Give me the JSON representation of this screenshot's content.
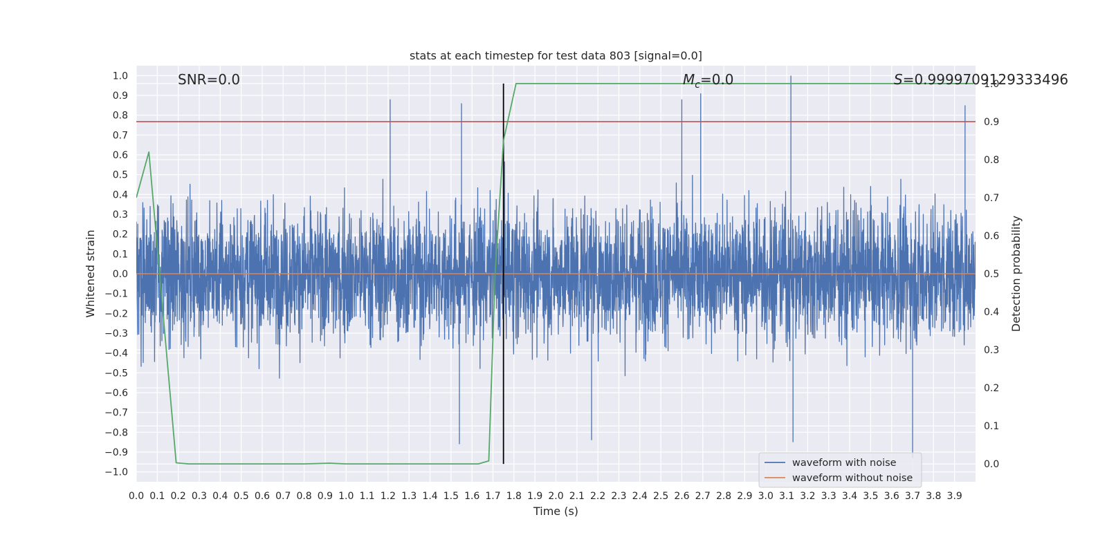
{
  "chart_data": {
    "type": "line",
    "title": "stats at each timestep for test data 803 [signal=0.0]",
    "xlabel": "Time (s)",
    "ylabel": "Whitened strain",
    "y2label": "Detection probability",
    "xlim": [
      0.0,
      4.0
    ],
    "ylim": [
      -1.05,
      1.05
    ],
    "y2lim": [
      -0.047,
      1.047
    ],
    "grid": true,
    "legend_placement": "lower-right",
    "x_ticks": [
      "0.0",
      "0.1",
      "0.2",
      "0.3",
      "0.4",
      "0.5",
      "0.6",
      "0.7",
      "0.8",
      "0.9",
      "1.0",
      "1.1",
      "1.2",
      "1.3",
      "1.4",
      "1.5",
      "1.6",
      "1.7",
      "1.8",
      "1.9",
      "2.0",
      "2.1",
      "2.2",
      "2.3",
      "2.4",
      "2.5",
      "2.6",
      "2.7",
      "2.8",
      "2.9",
      "3.0",
      "3.1",
      "3.2",
      "3.3",
      "3.4",
      "3.5",
      "3.6",
      "3.7",
      "3.8",
      "3.9"
    ],
    "y_ticks": [
      "1.0",
      "0.9",
      "0.8",
      "0.7",
      "0.6",
      "0.5",
      "0.4",
      "0.3",
      "0.2",
      "0.1",
      "0.0",
      "−0.1",
      "−0.2",
      "−0.3",
      "−0.4",
      "−0.5",
      "−0.6",
      "−0.7",
      "−0.8",
      "−0.9",
      "−1.0"
    ],
    "y2_ticks": [
      "0.0",
      "0.1",
      "0.2",
      "0.3",
      "0.4",
      "0.5",
      "0.6",
      "0.7",
      "0.8",
      "0.9",
      "1.0"
    ],
    "annotations": {
      "snr": "SNR=0.0",
      "mc_symbol": "M",
      "mc_sub": "c",
      "mc_value": "=0.0",
      "s_symbol": "S",
      "s_value": "=0.9999709129333496"
    },
    "series": [
      {
        "name": "waveform with noise",
        "color": "#4c72b0",
        "kind": "noise",
        "x_range": [
          0.0,
          4.0
        ],
        "amplitude_range": [
          -0.92,
          1.0
        ],
        "notable_peaks": [
          {
            "x": 1.21,
            "y": 0.88
          },
          {
            "x": 1.55,
            "y": 0.86
          },
          {
            "x": 2.6,
            "y": 0.88
          },
          {
            "x": 2.69,
            "y": 0.91
          },
          {
            "x": 3.12,
            "y": 1.0
          },
          {
            "x": 3.95,
            "y": 0.85
          },
          {
            "x": 1.54,
            "y": -0.86
          },
          {
            "x": 3.7,
            "y": -0.93
          },
          {
            "x": 3.13,
            "y": -0.85
          },
          {
            "x": 2.17,
            "y": -0.84
          }
        ]
      },
      {
        "name": "waveform without noise",
        "color": "#dd8452",
        "x": [
          0.0,
          4.0
        ],
        "y": [
          0.0,
          0.0
        ]
      },
      {
        "name": "",
        "color": "#55a868",
        "axis": "right",
        "x": [
          0.0,
          0.06,
          0.19,
          0.25,
          0.5,
          0.8,
          0.92,
          1.0,
          1.5,
          1.63,
          1.68,
          1.71,
          1.75,
          1.81,
          2.5,
          3.99
        ],
        "y": [
          0.7,
          0.82,
          0.003,
          0.0,
          0.0,
          0.0,
          0.002,
          0.0,
          0.0,
          0.0,
          0.008,
          0.5,
          0.85,
          1.0,
          1.0,
          1.0
        ]
      }
    ],
    "reference_lines": [
      {
        "orientation": "horizontal",
        "axis": "right",
        "value": 0.9,
        "color": "#c44e52"
      },
      {
        "orientation": "vertical",
        "value": 1.75,
        "color": "#000000"
      }
    ]
  }
}
